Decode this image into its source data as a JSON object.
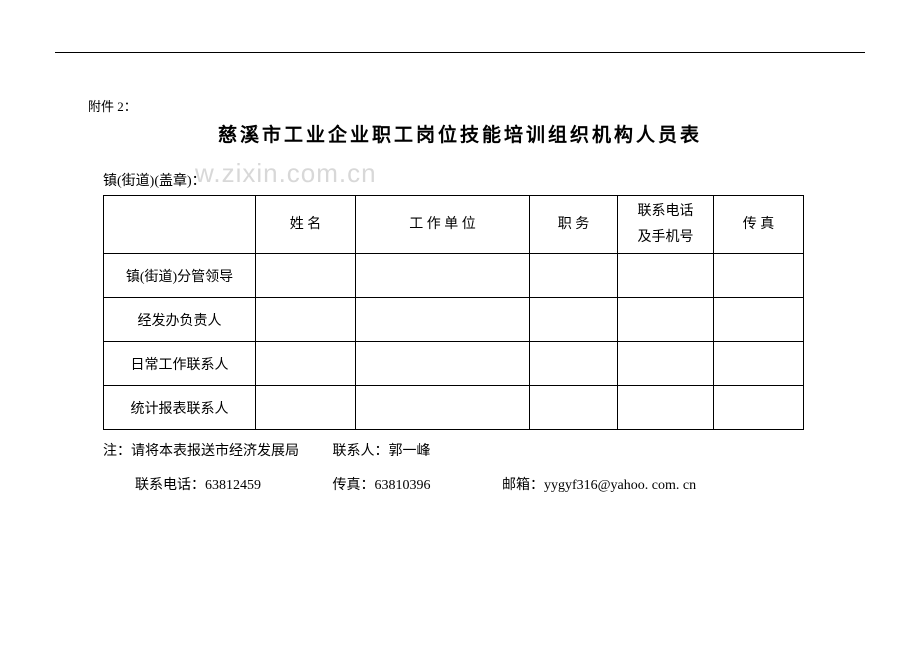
{
  "attachment_label": "附件 2：",
  "title": "慈溪市工业企业职工岗位技能培训组织机构人员表",
  "subheader": "镇(街道)(盖章)：",
  "watermark": "w.zixin.com.cn",
  "table": {
    "headers": {
      "col1": "",
      "col2": "姓 名",
      "col3": "工  作  单    位",
      "col4": "职  务",
      "col5_line1": "联系电话",
      "col5_line2": "及手机号",
      "col6": "传 真"
    },
    "rows": [
      {
        "label": "镇(街道)分管领导",
        "c2": "",
        "c3": "",
        "c4": "",
        "c5": "",
        "c6": ""
      },
      {
        "label": "经发办负责人",
        "c2": "",
        "c3": "",
        "c4": "",
        "c5": "",
        "c6": ""
      },
      {
        "label": "日常工作联系人",
        "c2": "",
        "c3": "",
        "c4": "",
        "c5": "",
        "c6": ""
      },
      {
        "label": "统计报表联系人",
        "c2": "",
        "c3": "",
        "c4": "",
        "c5": "",
        "c6": ""
      }
    ]
  },
  "footer": {
    "line1_seg1": "注：请将本表报送市经济发展局",
    "line1_seg2": "联系人：郭一峰",
    "line2_seg1": "联系电话：63812459",
    "line2_seg2": "传真：63810396",
    "line2_seg3": "邮箱：yygyf316@yahoo. com. cn"
  }
}
